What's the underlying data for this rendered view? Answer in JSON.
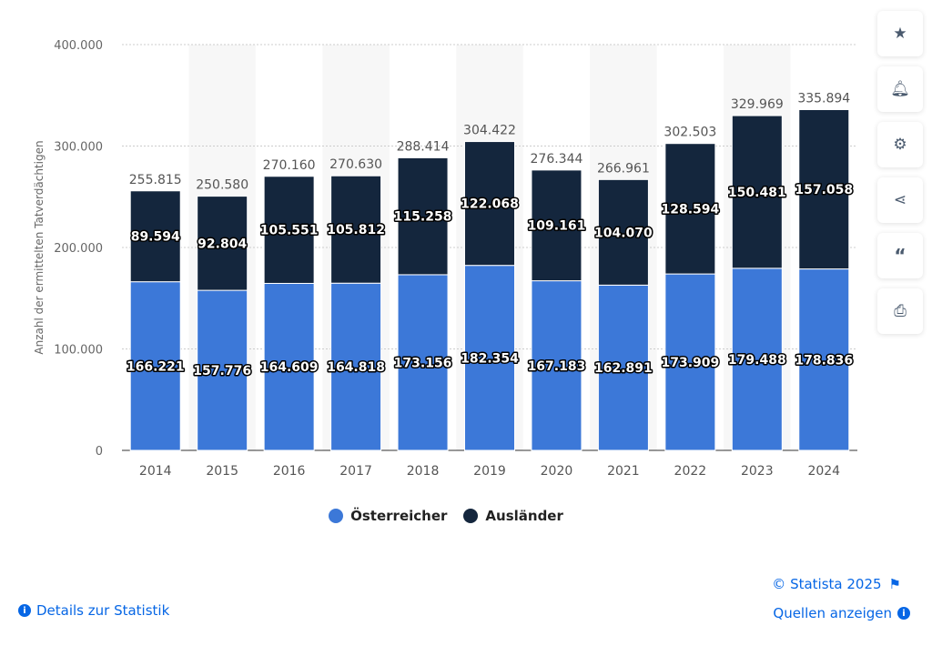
{
  "chart_data": {
    "type": "bar",
    "stacked": true,
    "categories": [
      "2014",
      "2015",
      "2016",
      "2017",
      "2018",
      "2019",
      "2020",
      "2021",
      "2022",
      "2023",
      "2024"
    ],
    "series": [
      {
        "name": "Österreicher",
        "color": "#3c78d8",
        "values": [
          166221,
          157776,
          164609,
          164818,
          173156,
          182354,
          167183,
          162891,
          173909,
          179488,
          178836
        ]
      },
      {
        "name": "Ausländer",
        "color": "#14263d",
        "values": [
          89594,
          92804,
          105551,
          105812,
          115258,
          122068,
          109161,
          104070,
          128594,
          150481,
          157058
        ]
      }
    ],
    "totals": [
      255815,
      250580,
      270160,
      270630,
      288414,
      304422,
      276344,
      266961,
      302503,
      329969,
      335894
    ],
    "value_labels": {
      "Österreicher": [
        "166.221",
        "157.776",
        "164.609",
        "164.818",
        "173.156",
        "182.354",
        "167.183",
        "162.891",
        "173.909",
        "179.488",
        "178.836"
      ],
      "Ausländer": [
        "89.594",
        "92.804",
        "105.551",
        "105.812",
        "115.258",
        "122.068",
        "109.161",
        "104.070",
        "128.594",
        "150.481",
        "157.058"
      ],
      "totals": [
        "255.815",
        "250.580",
        "270.160",
        "270.630",
        "288.414",
        "304.422",
        "276.344",
        "266.961",
        "302.503",
        "329.969",
        "335.894"
      ]
    },
    "ylabel": "Anzahl der ermittelten Tatverdächtigen",
    "xlabel": "",
    "ylim": [
      0,
      400000
    ],
    "yticks": [
      0,
      100000,
      200000,
      300000,
      400000
    ],
    "ytick_labels": [
      "0",
      "100.000",
      "200.000",
      "300.000",
      "400.000"
    ],
    "grid": true,
    "legend_position": "bottom"
  },
  "legend": [
    {
      "label": "Österreicher",
      "color": "#3c78d8"
    },
    {
      "label": "Ausländer",
      "color": "#14263d"
    }
  ],
  "toolbar": [
    "star-icon",
    "bell-icon",
    "gear-icon",
    "share-icon",
    "quote-icon",
    "print-icon"
  ],
  "footer": {
    "details": "Details zur Statistik",
    "copyright": "© Statista 2025",
    "sources": "Quellen anzeigen"
  }
}
